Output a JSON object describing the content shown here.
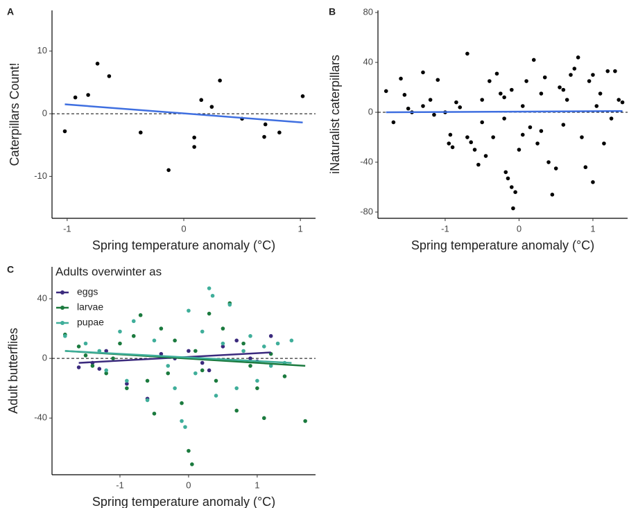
{
  "chart_data": [
    {
      "type": "scatter",
      "label": "A",
      "xlabel": "Spring temperature anomaly (°C)",
      "ylabel": "Caterpillars Count!",
      "xlim": [
        -1.13,
        1.13
      ],
      "ylim": [
        -16.7,
        16.5
      ],
      "xticks": [
        -1,
        0,
        1
      ],
      "yticks": [
        -10,
        0,
        10
      ],
      "hline": 0,
      "series": [
        {
          "color": "#000000",
          "x": [
            -1.02,
            -0.93,
            -0.82,
            -0.74,
            -0.64,
            -0.37,
            -0.13,
            0.09,
            0.09,
            0.15,
            0.24,
            0.31,
            0.5,
            0.69,
            0.7,
            0.82,
            1.02
          ],
          "values": [
            -2.8,
            2.6,
            3,
            8,
            6,
            -3,
            -9,
            -3.8,
            -5.3,
            2.2,
            1.1,
            5.3,
            -0.8,
            -3.7,
            -1.7,
            -3,
            2.8
          ]
        }
      ],
      "fit": {
        "color": "#3f6fe0",
        "x": [
          -1.02,
          1.02
        ],
        "values": [
          1.5,
          -1.4
        ]
      }
    },
    {
      "type": "scatter",
      "label": "B",
      "xlabel": "Spring temperature anomaly (°C)",
      "ylabel": "iNaturalist caterpillars",
      "xlim": [
        -1.91,
        1.47
      ],
      "ylim": [
        -85,
        81.7
      ],
      "xticks": [
        -1,
        0,
        1
      ],
      "yticks": [
        -80,
        -40,
        0,
        40,
        80
      ],
      "hline": 0,
      "series": [
        {
          "color": "#000000",
          "x": [
            -1.8,
            -1.7,
            -1.6,
            -1.55,
            -1.5,
            -1.45,
            -1.3,
            -1.3,
            -1.2,
            -1.15,
            -1.1,
            -1.0,
            -0.95,
            -0.93,
            -0.9,
            -0.85,
            -0.8,
            -0.7,
            -0.7,
            -0.65,
            -0.6,
            -0.55,
            -0.5,
            -0.45,
            -0.4,
            -0.35,
            -0.3,
            -0.25,
            -0.2,
            -0.18,
            -0.15,
            -0.1,
            -0.08,
            -0.05,
            0,
            0.05,
            0.1,
            0.15,
            0.2,
            0.25,
            0.3,
            0.35,
            0.4,
            0.45,
            0.5,
            0.55,
            0.6,
            0.65,
            0.7,
            0.75,
            0.8,
            0.85,
            0.9,
            0.95,
            1.0,
            1.0,
            1.05,
            1.1,
            1.15,
            1.2,
            1.25,
            1.3,
            1.35,
            1.4,
            -0.2,
            -0.1,
            0.05,
            0.3,
            0.6,
            -0.5
          ],
          "values": [
            17,
            -8,
            27,
            14,
            3,
            0,
            32,
            5,
            10,
            -2,
            26,
            0,
            -25,
            -18,
            -28,
            8,
            4,
            47,
            -20,
            -24,
            -30,
            -42,
            10,
            -35,
            25,
            -20,
            31,
            15,
            -5,
            -48,
            -53,
            -60,
            -77,
            -64,
            -30,
            -18,
            25,
            -12,
            42,
            -25,
            15,
            28,
            -40,
            -66,
            -45,
            20,
            -10,
            10,
            30,
            35,
            44,
            -20,
            -44,
            25,
            -56,
            30,
            5,
            15,
            -25,
            33,
            -5,
            33,
            10,
            8,
            12,
            18,
            5,
            -15,
            18,
            -8
          ]
        }
      ],
      "fit": {
        "color": "#3f6fe0",
        "x": [
          -1.8,
          1.4
        ],
        "values": [
          0,
          1
        ]
      }
    },
    {
      "type": "scatter",
      "label": "C",
      "xlabel": "Spring temperature anomaly (°C)",
      "ylabel": "Adult butterflies",
      "legend_title": "Adults overwinter as",
      "xlim": [
        -1.99,
        1.85
      ],
      "ylim": [
        -78,
        61.4
      ],
      "xticks": [
        -1,
        0,
        1
      ],
      "yticks": [
        -40,
        0,
        40
      ],
      "hline": 0,
      "series": [
        {
          "name": "eggs",
          "color": "#3b2a7d",
          "x": [
            -1.6,
            -1.4,
            -1.3,
            -1.2,
            -0.9,
            -0.6,
            -0.4,
            -0.2,
            0,
            0.2,
            0.5,
            0.7,
            0.9,
            1.0,
            1.2,
            0.3
          ],
          "values": [
            -6,
            -3,
            -7,
            5,
            -17,
            -27,
            3,
            0,
            5,
            -3,
            8,
            12,
            0,
            -2,
            15,
            -8
          ],
          "fit": {
            "x": [
              -1.6,
              1.2
            ],
            "values": [
              -3,
              4
            ]
          }
        },
        {
          "name": "larvae",
          "color": "#1b7a3e",
          "x": [
            -1.8,
            -1.6,
            -1.5,
            -1.4,
            -1.2,
            -1.1,
            -1.0,
            -0.9,
            -0.8,
            -0.7,
            -0.6,
            -0.5,
            -0.4,
            -0.3,
            -0.2,
            -0.1,
            0,
            0.05,
            0.1,
            0.2,
            0.3,
            0.4,
            0.5,
            0.6,
            0.7,
            0.8,
            0.9,
            1.0,
            1.1,
            1.2,
            1.4,
            1.7
          ],
          "values": [
            16,
            8,
            2,
            -5,
            -10,
            0,
            10,
            -20,
            15,
            29,
            -15,
            -37,
            20,
            -10,
            12,
            -30,
            -62,
            -71,
            5,
            -8,
            30,
            -15,
            20,
            37,
            -35,
            10,
            -5,
            -20,
            -40,
            3,
            -12,
            -42
          ],
          "fit": {
            "x": [
              -1.8,
              1.7
            ],
            "values": [
              5,
              -5
            ]
          }
        },
        {
          "name": "pupae",
          "color": "#3fae9a",
          "x": [
            -1.8,
            -1.5,
            -1.3,
            -1.2,
            -1.0,
            -0.9,
            -0.8,
            -0.6,
            -0.5,
            -0.3,
            -0.2,
            -0.1,
            -0.05,
            0,
            0.1,
            0.2,
            0.3,
            0.35,
            0.4,
            0.5,
            0.6,
            0.7,
            0.8,
            0.9,
            1.0,
            1.1,
            1.2,
            1.3,
            1.4,
            1.5
          ],
          "values": [
            15,
            10,
            5,
            -8,
            18,
            -15,
            25,
            -28,
            12,
            -5,
            -20,
            -42,
            -46,
            32,
            -10,
            18,
            47,
            42,
            -25,
            10,
            36,
            -20,
            5,
            15,
            -15,
            8,
            -5,
            10,
            -3,
            12
          ],
          "fit": {
            "x": [
              -1.8,
              1.5
            ],
            "values": [
              5,
              -3
            ]
          }
        }
      ]
    }
  ]
}
